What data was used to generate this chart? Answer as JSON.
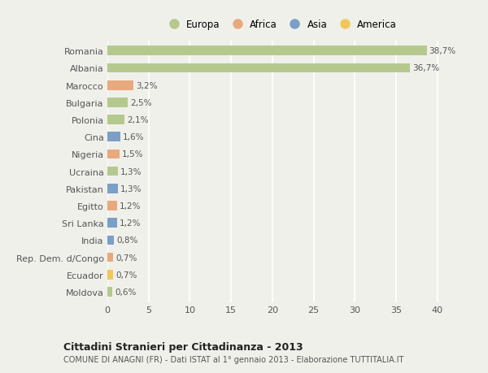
{
  "countries": [
    "Romania",
    "Albania",
    "Marocco",
    "Bulgaria",
    "Polonia",
    "Cina",
    "Nigeria",
    "Ucraina",
    "Pakistan",
    "Egitto",
    "Sri Lanka",
    "India",
    "Rep. Dem. d/Congo",
    "Ecuador",
    "Moldova"
  ],
  "values": [
    38.7,
    36.7,
    3.2,
    2.5,
    2.1,
    1.6,
    1.5,
    1.3,
    1.3,
    1.2,
    1.2,
    0.8,
    0.7,
    0.7,
    0.6
  ],
  "labels": [
    "38,7%",
    "36,7%",
    "3,2%",
    "2,5%",
    "2,1%",
    "1,6%",
    "1,5%",
    "1,3%",
    "1,3%",
    "1,2%",
    "1,2%",
    "0,8%",
    "0,7%",
    "0,7%",
    "0,6%"
  ],
  "continents": [
    "Europa",
    "Europa",
    "Africa",
    "Europa",
    "Europa",
    "Asia",
    "Africa",
    "Europa",
    "Asia",
    "Africa",
    "Asia",
    "Asia",
    "Africa",
    "America",
    "Europa"
  ],
  "colors": {
    "Europa": "#b5c98e",
    "Africa": "#e8a97e",
    "Asia": "#7b9fc7",
    "America": "#f0c85a"
  },
  "legend_order": [
    "Europa",
    "Africa",
    "Asia",
    "America"
  ],
  "title": "Cittadini Stranieri per Cittadinanza - 2013",
  "subtitle": "COMUNE DI ANAGNI (FR) - Dati ISTAT al 1° gennaio 2013 - Elaborazione TUTTITALIA.IT",
  "xlim": [
    0,
    42
  ],
  "xticks": [
    0,
    5,
    10,
    15,
    20,
    25,
    30,
    35,
    40
  ],
  "background_color": "#f0f0eb",
  "grid_color": "#ffffff"
}
